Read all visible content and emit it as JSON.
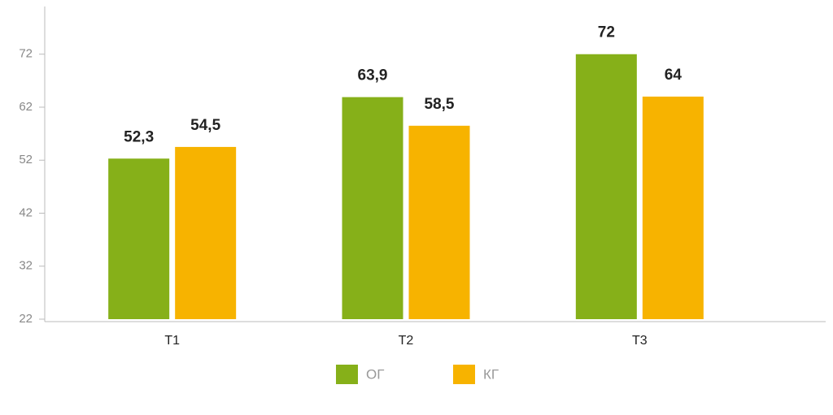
{
  "chart_data": {
    "type": "bar",
    "categories": [
      "Т1",
      "Т2",
      "Т3"
    ],
    "series": [
      {
        "name": "ОГ",
        "color": "#86b019",
        "values": [
          52.3,
          63.9,
          72
        ],
        "value_labels": [
          "52,3",
          "63,9",
          "72"
        ]
      },
      {
        "name": "КГ",
        "color": "#f7b300",
        "values": [
          54.5,
          58.5,
          64
        ],
        "value_labels": [
          "54,5",
          "58,5",
          "64"
        ]
      }
    ],
    "ylim": [
      22,
      81
    ],
    "yticks": [
      22,
      32,
      42,
      52,
      62,
      72
    ]
  }
}
